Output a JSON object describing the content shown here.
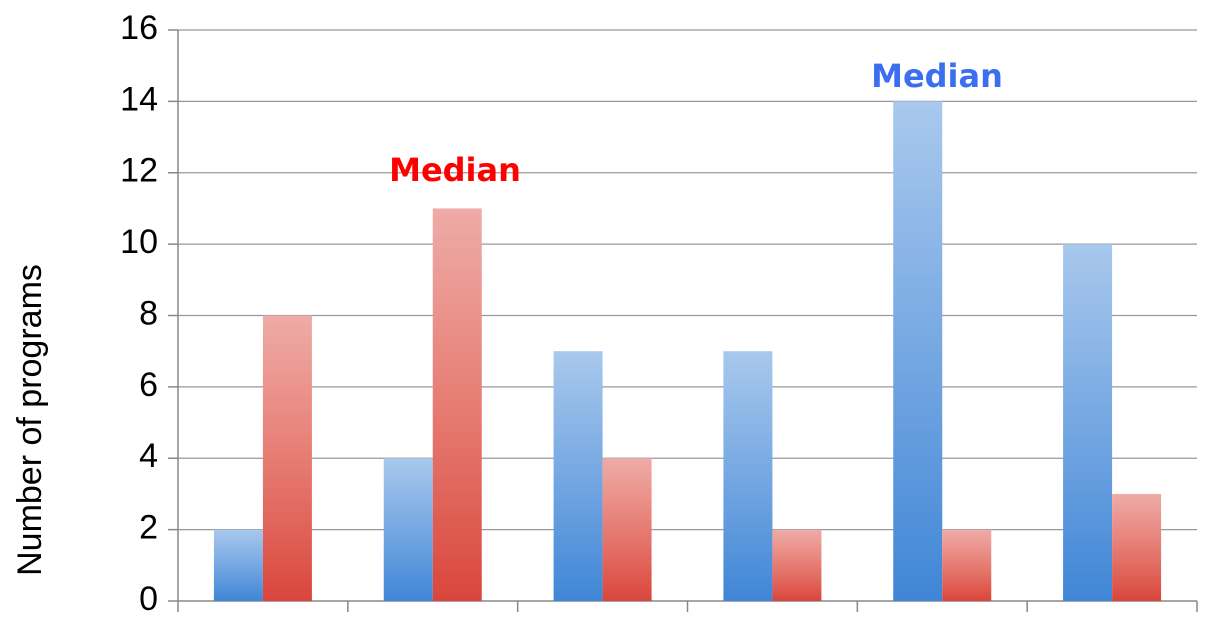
{
  "chart_data": {
    "type": "bar",
    "y_label": "Number of programs",
    "categories": [
      null,
      null,
      null,
      null,
      null,
      null
    ],
    "series": [
      {
        "color": "#3f86d6",
        "values": [
          2,
          4,
          7,
          7,
          14,
          10
        ]
      },
      {
        "color": "#d9453c",
        "values": [
          8,
          11,
          4,
          2,
          2,
          3
        ]
      }
    ],
    "annotations": [
      {
        "text": "Median",
        "color": "#ff0000"
      },
      {
        "text": "Median",
        "color": "#3c6ef0"
      }
    ],
    "ylim": [
      0,
      16
    ],
    "yticks": [
      0,
      2,
      4,
      6,
      8,
      10,
      12,
      14,
      16
    ],
    "grid": true
  }
}
